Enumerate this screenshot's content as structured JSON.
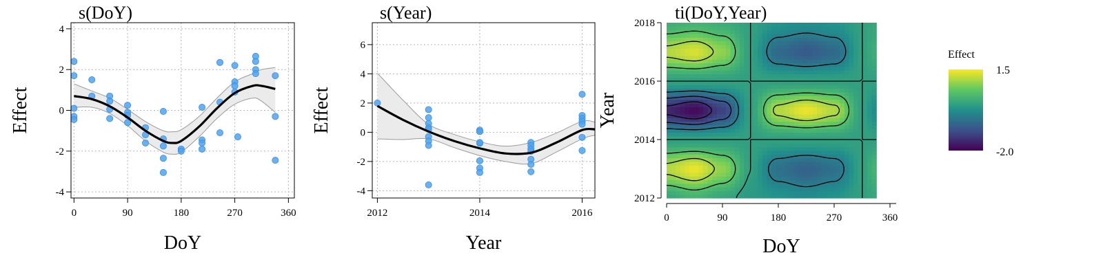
{
  "chart_data": [
    {
      "type": "line",
      "title": "s(DoY)",
      "xlabel": "DoY",
      "ylabel": "Effect",
      "xlim": [
        -5,
        370
      ],
      "ylim": [
        -4.3,
        4.3
      ],
      "xticks": [
        0,
        90,
        180,
        270,
        360
      ],
      "yticks": [
        -4,
        -2,
        0,
        2,
        4
      ],
      "grid": true,
      "fit": {
        "x": [
          0,
          30,
          60,
          90,
          120,
          150,
          165,
          180,
          210,
          240,
          270,
          300,
          315,
          338
        ],
        "y": [
          0.7,
          0.55,
          0.2,
          -0.35,
          -1.0,
          -1.5,
          -1.6,
          -1.5,
          -0.8,
          0.1,
          0.85,
          1.2,
          1.2,
          1.05
        ],
        "lower": [
          0.15,
          0.15,
          -0.15,
          -0.75,
          -1.5,
          -2.05,
          -2.15,
          -2.05,
          -1.3,
          -0.4,
          0.3,
          0.6,
          0.45,
          -0.1
        ],
        "upper": [
          1.3,
          0.95,
          0.6,
          0.05,
          -0.55,
          -1.0,
          -1.05,
          -0.95,
          -0.3,
          0.6,
          1.4,
          1.8,
          2.0,
          2.1
        ]
      },
      "points": {
        "x": [
          0,
          0,
          0,
          0,
          0,
          30,
          30,
          60,
          60,
          60,
          60,
          90,
          90,
          90,
          90,
          120,
          120,
          120,
          150,
          150,
          150,
          150,
          150,
          180,
          180,
          215,
          215,
          215,
          215,
          245,
          245,
          245,
          270,
          270,
          270,
          270,
          275,
          305,
          305,
          305,
          305,
          338,
          338,
          338
        ],
        "y": [
          2.4,
          1.7,
          0.1,
          -0.3,
          -0.45,
          1.5,
          0.7,
          0.7,
          0.45,
          0.05,
          -0.4,
          0.25,
          -0.1,
          -0.25,
          -0.6,
          -0.85,
          -1.2,
          -1.6,
          -0.05,
          -1.4,
          -1.75,
          -2.35,
          -3.05,
          -1.9,
          -2.0,
          0.15,
          -1.45,
          -1.6,
          -1.9,
          2.35,
          0.4,
          -1.1,
          2.2,
          1.4,
          1.2,
          0.9,
          -1.3,
          2.65,
          2.4,
          2.0,
          1.8,
          1.7,
          -0.3,
          -2.45
        ]
      }
    },
    {
      "type": "line",
      "title": "s(Year)",
      "xlabel": "Year",
      "ylabel": "Effect",
      "xlim": [
        2011.9,
        2016.25
      ],
      "ylim": [
        -4.5,
        7.5
      ],
      "xticks": [
        2012,
        2014,
        2016
      ],
      "yticks": [
        -4,
        -2,
        0,
        2,
        4,
        6
      ],
      "grid": true,
      "fit": {
        "x": [
          2012,
          2012.5,
          2013,
          2013.5,
          2014,
          2014.5,
          2015,
          2015.5,
          2016,
          2016.25
        ],
        "y": [
          1.8,
          0.85,
          0.05,
          -0.6,
          -1.1,
          -1.45,
          -1.4,
          -0.7,
          0.15,
          0.2
        ],
        "lower": [
          -0.45,
          -0.5,
          -0.45,
          -1.05,
          -1.6,
          -2.0,
          -2.15,
          -1.35,
          -0.45,
          -0.2
        ],
        "upper": [
          4.05,
          2.2,
          0.55,
          -0.15,
          -0.65,
          -0.95,
          -0.7,
          -0.05,
          0.75,
          0.7
        ]
      },
      "points": {
        "x": [
          2012,
          2013,
          2013,
          2013,
          2013,
          2013,
          2013,
          2013,
          2013,
          2013,
          2014,
          2014,
          2014,
          2014,
          2014,
          2014,
          2014,
          2015,
          2015,
          2015,
          2015,
          2015,
          2015,
          2015,
          2016,
          2016,
          2016,
          2016,
          2016,
          2016,
          2016
        ],
        "y": [
          2.0,
          1.55,
          1.0,
          0.6,
          0.3,
          0.2,
          -0.3,
          -0.6,
          -0.9,
          -3.6,
          0.15,
          0.05,
          -0.75,
          -1.95,
          -2.45,
          -2.75,
          -0.7,
          -0.7,
          -0.9,
          -1.15,
          -1.85,
          -2.2,
          -2.7,
          -1.3,
          2.6,
          1.15,
          0.95,
          0.75,
          0.55,
          -0.35,
          -1.25
        ]
      }
    },
    {
      "type": "heatmap",
      "title": "ti(DoY,Year)",
      "xlabel": "DoY",
      "ylabel": "Year",
      "xlim": [
        0,
        370
      ],
      "ylim": [
        2012,
        2018
      ],
      "xticks": [
        0,
        90,
        180,
        270,
        360
      ],
      "yticks": [
        2012,
        2014,
        2016,
        2018
      ],
      "data_x_max": 338,
      "legend": {
        "title": "Effect",
        "placement": "right",
        "max": 1.5,
        "min": -2.0,
        "max_label": "1.5",
        "min_label": "-2.0"
      },
      "palette": [
        "#440154",
        "#3b528b",
        "#21908c",
        "#5dc863",
        "#fde725"
      ],
      "surface": {
        "x": [
          0,
          45,
          90,
          135,
          180,
          225,
          270,
          315,
          338
        ],
        "y": [
          2012,
          2013,
          2014,
          2015,
          2016,
          2017,
          2018
        ],
        "z": [
          [
            0.1,
            0.3,
            0.1,
            -0.1,
            -0.2,
            -0.3,
            -0.2,
            0.0,
            0.1
          ],
          [
            1.1,
            1.4,
            0.9,
            0.0,
            -0.7,
            -0.9,
            -0.7,
            0.0,
            0.3
          ],
          [
            0.0,
            0.0,
            0.0,
            0.0,
            0.0,
            0.0,
            0.0,
            0.0,
            0.0
          ],
          [
            -1.6,
            -1.9,
            -1.3,
            0.0,
            1.1,
            1.4,
            1.1,
            0.0,
            -0.3
          ],
          [
            0.0,
            0.0,
            0.0,
            0.0,
            0.0,
            0.0,
            0.0,
            0.0,
            0.0
          ],
          [
            1.1,
            1.3,
            0.9,
            0.0,
            -0.8,
            -1.0,
            -0.8,
            0.0,
            0.2
          ],
          [
            0.2,
            0.3,
            0.2,
            0.0,
            -0.2,
            -0.3,
            -0.2,
            0.0,
            0.1
          ]
        ]
      }
    }
  ]
}
